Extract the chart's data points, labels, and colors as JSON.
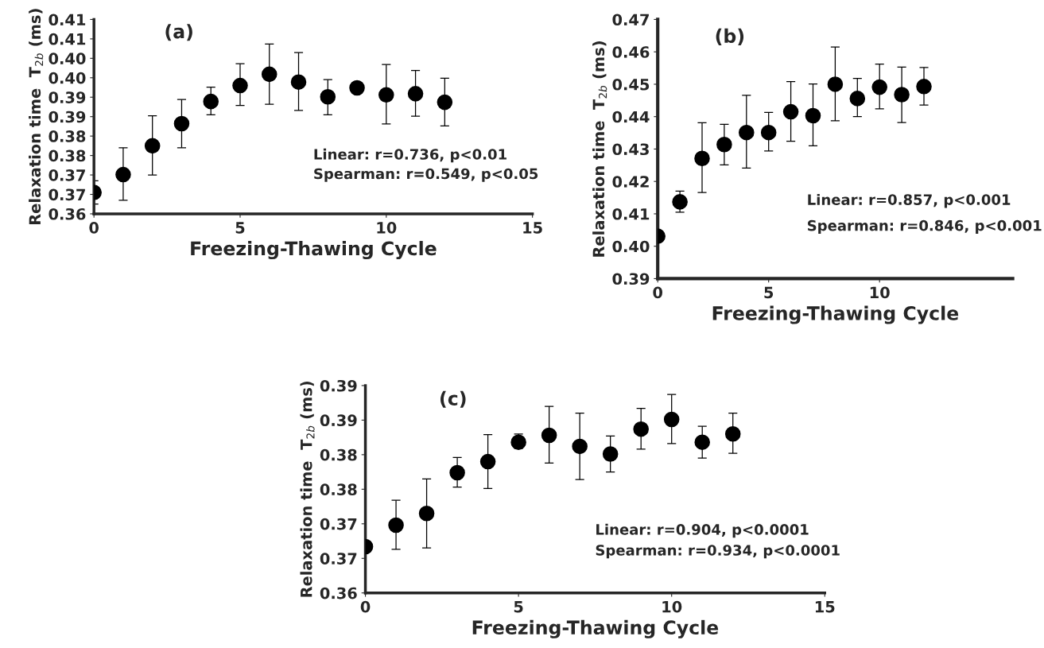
{
  "chart_data": [
    {
      "type": "scatter",
      "title": "(a)",
      "xlabel": "Freezing-Thawing Cycle",
      "ylabel": "Relaxation time  T$_{2b}$ (ms)",
      "annotations": [
        "Linear: r=0.736, p<0.01",
        "Spearman: r=0.549, p<0.05"
      ],
      "marker": "circle",
      "x": [
        0,
        1,
        2,
        3,
        4,
        5,
        6,
        7,
        8,
        9,
        10,
        11,
        12
      ],
      "series": [
        {
          "color": "#000000",
          "values": [
            0.3655,
            0.3701,
            0.3775,
            0.3832,
            0.3889,
            0.393,
            0.3959,
            0.3939,
            0.3901,
            0.3924,
            0.3906,
            0.3909,
            0.3887
          ],
          "errors": [
            [
              0.3625,
              0.3685
            ],
            [
              0.3635,
              0.377
            ],
            [
              0.37,
              0.3852
            ],
            [
              0.377,
              0.3894
            ],
            [
              0.3855,
              0.3926
            ],
            [
              0.3879,
              0.3986
            ],
            [
              0.3882,
              0.4037
            ],
            [
              0.3866,
              0.4015
            ],
            [
              0.3855,
              0.3945
            ],
            null,
            [
              0.3831,
              0.3984
            ],
            [
              0.3851,
              0.3969
            ],
            [
              0.3826,
              0.3949
            ]
          ]
        }
      ],
      "xlim": [
        0,
        15
      ],
      "xticks": [
        0,
        5,
        10,
        15
      ],
      "ylim": [
        0.36,
        0.41
      ],
      "yticks": [
        {
          "value": 0.36,
          "label": "0.36"
        },
        {
          "value": 0.365,
          "label": "0.37"
        },
        {
          "value": 0.37,
          "label": "0.37"
        },
        {
          "value": 0.375,
          "label": "0.38"
        },
        {
          "value": 0.38,
          "label": "0.38"
        },
        {
          "value": 0.385,
          "label": "0.39"
        },
        {
          "value": 0.39,
          "label": "0.39"
        },
        {
          "value": 0.395,
          "label": "0.40"
        },
        {
          "value": 0.4,
          "label": "0.40"
        },
        {
          "value": 0.405,
          "label": "0.41"
        },
        {
          "value": 0.41,
          "label": "0.41"
        }
      ]
    },
    {
      "type": "scatter",
      "title": "(b)",
      "xlabel": "Freezing-Thawing Cycle",
      "ylabel": "Relaxation time  T$_{2b}$ (ms)",
      "annotations": [
        "Linear: r=0.857, p<0.001",
        "Spearman: r=0.846, p<0.001"
      ],
      "marker": "circle",
      "x": [
        0,
        1,
        2,
        3,
        4,
        5,
        6,
        7,
        8,
        9,
        10,
        11,
        12
      ],
      "series": [
        {
          "color": "#000000",
          "values": [
            0.4031,
            0.4137,
            0.4271,
            0.4314,
            0.4351,
            0.4351,
            0.4415,
            0.4403,
            0.45,
            0.4456,
            0.4491,
            0.4468,
            0.4493
          ],
          "errors": [
            null,
            [
              0.4105,
              0.417
            ],
            [
              0.4166,
              0.4381
            ],
            [
              0.4251,
              0.4376
            ],
            [
              0.4241,
              0.4466
            ],
            [
              0.4294,
              0.4413
            ],
            [
              0.4324,
              0.4508
            ],
            [
              0.431,
              0.4501
            ],
            [
              0.4387,
              0.4615
            ],
            [
              0.44,
              0.4518
            ],
            [
              0.4424,
              0.4562
            ],
            [
              0.4382,
              0.4553
            ],
            [
              0.4436,
              0.4552
            ]
          ]
        }
      ],
      "xlim": [
        0,
        16
      ],
      "xticks": [
        0,
        5,
        10
      ],
      "ylim": [
        0.39,
        0.47
      ],
      "yticks": [
        0.39,
        {
          "value": 0.4,
          "label": "0.40"
        },
        0.41,
        0.42,
        0.43,
        0.44,
        0.45,
        0.46,
        0.47
      ]
    },
    {
      "type": "scatter",
      "title": "(c)",
      "xlabel": "Freezing-Thawing Cycle",
      "ylabel": "Relaxation time  T$_{2b}$ (ms)",
      "annotations": [
        "Linear: r=0.904, p<0.0001",
        "Spearman: r=0.934, p<0.0001"
      ],
      "marker": "circle",
      "x": [
        0,
        1,
        2,
        3,
        4,
        5,
        6,
        7,
        8,
        9,
        10,
        11,
        12
      ],
      "series": [
        {
          "color": "#000000",
          "values": [
            0.3667,
            0.3698,
            0.3715,
            0.3774,
            0.379,
            0.3818,
            0.3828,
            0.3812,
            0.3801,
            0.3837,
            0.3851,
            0.3818,
            0.383
          ],
          "errors": [
            null,
            [
              0.3663,
              0.3734
            ],
            [
              0.3665,
              0.3765
            ],
            [
              0.3753,
              0.3796
            ],
            [
              0.3751,
              0.3829
            ],
            [
              0.3809,
              0.383
            ],
            [
              0.3788,
              0.387
            ],
            [
              0.3764,
              0.386
            ],
            [
              0.3775,
              0.3827
            ],
            [
              0.3808,
              0.3867
            ],
            [
              0.3816,
              0.3887
            ],
            [
              0.3795,
              0.3841
            ],
            [
              0.3802,
              0.386
            ]
          ]
        }
      ],
      "xlim": [
        0,
        15
      ],
      "xticks": [
        0,
        5,
        10,
        15
      ],
      "ylim": [
        0.36,
        0.39
      ],
      "yticks": [
        {
          "value": 0.36,
          "label": "0.36"
        },
        {
          "value": 0.365,
          "label": "0.37"
        },
        {
          "value": 0.37,
          "label": "0.37"
        },
        {
          "value": 0.375,
          "label": "0.38"
        },
        {
          "value": 0.38,
          "label": "0.38"
        },
        {
          "value": 0.385,
          "label": "0.39"
        },
        {
          "value": 0.39,
          "label": "0.39"
        }
      ]
    }
  ]
}
